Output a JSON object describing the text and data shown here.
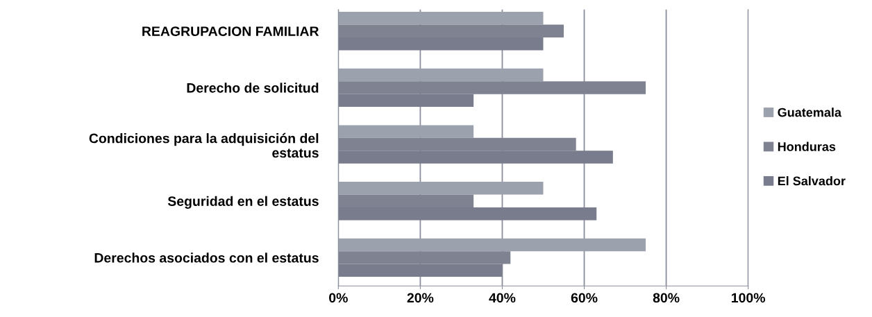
{
  "chart_data": {
    "type": "bar",
    "orientation": "horizontal",
    "categories": [
      "REAGRUPACION FAMILIAR",
      "Derecho de solicitud",
      "Condiciones para la adquisición del\nestatus",
      "Seguridad en el estatus",
      "Derechos asociados con el estatus"
    ],
    "series": [
      {
        "name": "Guatemala",
        "color": "#9ca1ae",
        "values": [
          50,
          50,
          33,
          50,
          75
        ]
      },
      {
        "name": "Honduras",
        "color": "#7f8391",
        "values": [
          55,
          75,
          58,
          33,
          42
        ]
      },
      {
        "name": "El Salvador",
        "color": "#787c8d",
        "values": [
          50,
          33,
          67,
          63,
          40
        ]
      }
    ],
    "xlim": [
      0,
      100
    ],
    "xticks": [
      {
        "value": 0,
        "label": "0%"
      },
      {
        "value": 20,
        "label": "20%"
      },
      {
        "value": 40,
        "label": "40%"
      },
      {
        "value": 60,
        "label": "60%"
      },
      {
        "value": 80,
        "label": "80%"
      },
      {
        "value": 100,
        "label": "100%"
      }
    ],
    "grid": "x",
    "legend": "right"
  }
}
